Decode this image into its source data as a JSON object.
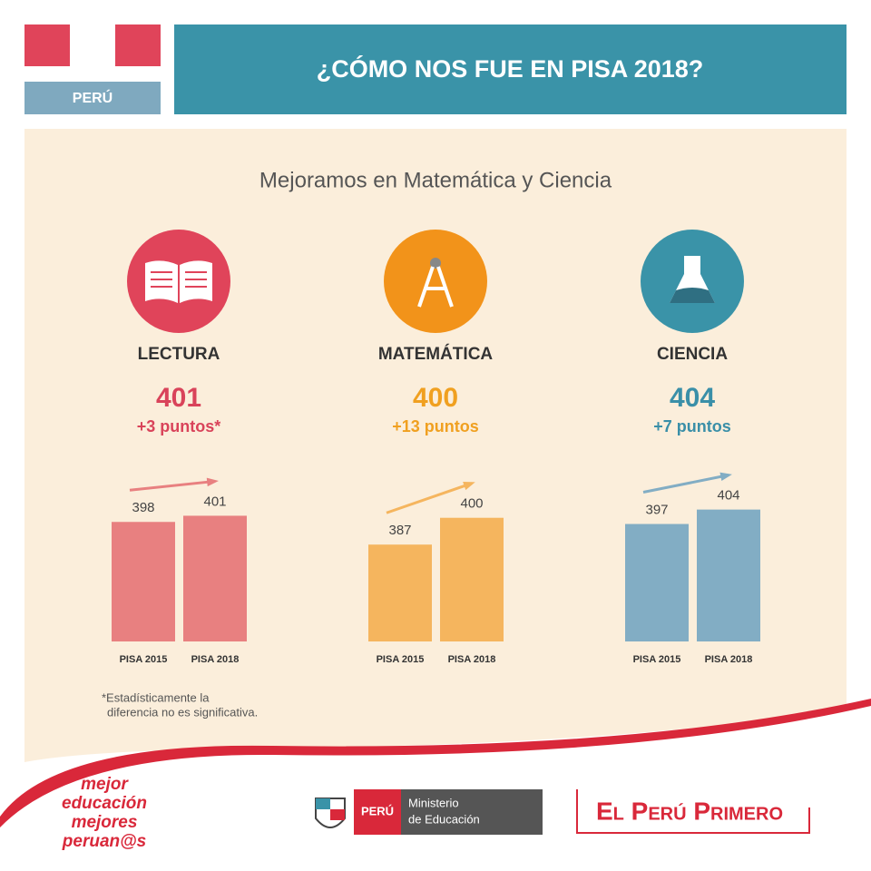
{
  "header": {
    "country": "PERÚ",
    "title": "¿CÓMO NOS FUE EN PISA 2018?"
  },
  "subtitle": "Mejoramos en Matemática y Ciencia",
  "chart_data": [
    {
      "type": "bar",
      "title": "LECTURA",
      "score": 401,
      "change": "+3 puntos*",
      "categories": [
        "PISA 2015",
        "PISA 2018"
      ],
      "values": [
        398,
        401
      ],
      "color": "#e88080",
      "accent": "#d9435a",
      "ylim": [
        340,
        410
      ]
    },
    {
      "type": "bar",
      "title": "MATEMÁTICA",
      "score": 400,
      "change": "+13 puntos",
      "categories": [
        "PISA 2015",
        "PISA 2018"
      ],
      "values": [
        387,
        400
      ],
      "color": "#f5b55e",
      "accent": "#f0a020",
      "ylim": [
        340,
        410
      ]
    },
    {
      "type": "bar",
      "title": "CIENCIA",
      "score": 404,
      "change": "+7 puntos",
      "categories": [
        "PISA 2015",
        "PISA 2018"
      ],
      "values": [
        397,
        404
      ],
      "color": "#82adc4",
      "accent": "#3a8fa8",
      "ylim": [
        340,
        410
      ]
    }
  ],
  "note": [
    "*Estadísticamente la",
    "diferencia no es significativa."
  ],
  "footer": {
    "slogan": [
      "mejor",
      "educación",
      "mejores",
      "peruan@s"
    ],
    "ministry_country": "PERÚ",
    "ministry": [
      "Ministerio",
      "de Educación"
    ],
    "brand": "El Perú Primero"
  }
}
